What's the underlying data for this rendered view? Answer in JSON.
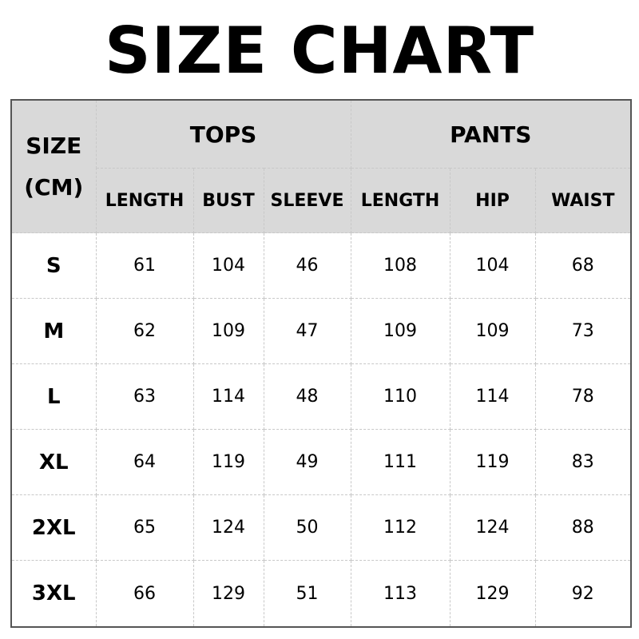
{
  "title": "SIZE CHART",
  "header": {
    "size_label_1": "SIZE",
    "size_label_2": "(CM)",
    "tops": "TOPS",
    "pants": "PANTS",
    "columns": [
      "LENGTH",
      "BUST",
      "SLEEVE",
      "LENGTH",
      "HIP",
      "WAIST"
    ]
  },
  "rows": [
    {
      "size": "S",
      "values": [
        "61",
        "104",
        "46",
        "108",
        "104",
        "68"
      ]
    },
    {
      "size": "M",
      "values": [
        "62",
        "109",
        "47",
        "109",
        "109",
        "73"
      ]
    },
    {
      "size": "L",
      "values": [
        "63",
        "114",
        "48",
        "110",
        "114",
        "78"
      ]
    },
    {
      "size": "XL",
      "values": [
        "64",
        "119",
        "49",
        "111",
        "119",
        "83"
      ]
    },
    {
      "size": "2XL",
      "values": [
        "65",
        "124",
        "50",
        "112",
        "124",
        "88"
      ]
    },
    {
      "size": "3XL",
      "values": [
        "66",
        "129",
        "51",
        "113",
        "129",
        "92"
      ]
    }
  ],
  "colors": {
    "header_bg": "#d9d9d9",
    "border": "#555555"
  }
}
